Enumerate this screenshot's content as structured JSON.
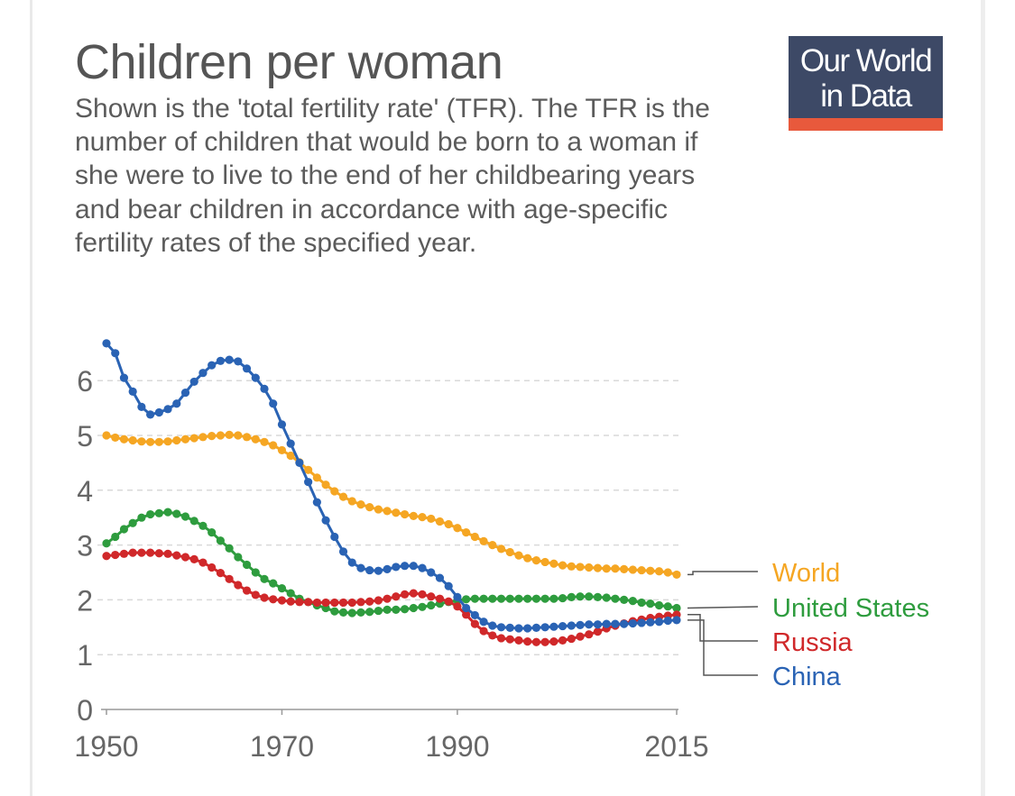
{
  "header": {
    "title": "Children per woman",
    "subtitle": "Shown is the 'total fertility rate' (TFR). The TFR is the number of children that would be born to a woman if she were to live to the end of her childbearing years and bear children in accordance with age-specific fertility rates of the specified year."
  },
  "logo": {
    "line1": "Our World",
    "line2": "in Data"
  },
  "colors": {
    "World": "#f5a623",
    "United States": "#2e9c3e",
    "Russia": "#d0282a",
    "China": "#2a63b4"
  },
  "chart_data": {
    "type": "line",
    "title": "Children per woman",
    "ylim": [
      0,
      6.6
    ],
    "yticks": [
      0,
      1,
      2,
      3,
      4,
      5,
      6
    ],
    "xticks": [
      1950,
      1970,
      1990,
      2015
    ],
    "grid": true,
    "legend": "right-end labels",
    "x": [
      1950,
      1951,
      1952,
      1953,
      1954,
      1955,
      1956,
      1957,
      1958,
      1959,
      1960,
      1961,
      1962,
      1963,
      1964,
      1965,
      1966,
      1967,
      1968,
      1969,
      1970,
      1971,
      1972,
      1973,
      1974,
      1975,
      1976,
      1977,
      1978,
      1979,
      1980,
      1981,
      1982,
      1983,
      1984,
      1985,
      1986,
      1987,
      1988,
      1989,
      1990,
      1991,
      1992,
      1993,
      1994,
      1995,
      1996,
      1997,
      1998,
      1999,
      2000,
      2001,
      2002,
      2003,
      2004,
      2005,
      2006,
      2007,
      2008,
      2009,
      2010,
      2011,
      2012,
      2013,
      2014,
      2015
    ],
    "series": [
      {
        "name": "World",
        "values": [
          5.0,
          4.96,
          4.93,
          4.91,
          4.89,
          4.88,
          4.88,
          4.89,
          4.91,
          4.93,
          4.95,
          4.97,
          4.99,
          5.0,
          5.01,
          5.0,
          4.97,
          4.93,
          4.88,
          4.82,
          4.73,
          4.63,
          4.51,
          4.37,
          4.23,
          4.1,
          3.98,
          3.88,
          3.8,
          3.74,
          3.69,
          3.65,
          3.62,
          3.59,
          3.56,
          3.53,
          3.51,
          3.48,
          3.43,
          3.38,
          3.31,
          3.23,
          3.15,
          3.07,
          3.0,
          2.93,
          2.87,
          2.81,
          2.76,
          2.72,
          2.69,
          2.66,
          2.63,
          2.61,
          2.6,
          2.59,
          2.58,
          2.57,
          2.57,
          2.56,
          2.55,
          2.54,
          2.53,
          2.52,
          2.5,
          2.46
        ]
      },
      {
        "name": "United States",
        "values": [
          3.03,
          3.15,
          3.29,
          3.4,
          3.5,
          3.56,
          3.58,
          3.6,
          3.57,
          3.52,
          3.44,
          3.35,
          3.23,
          3.08,
          2.94,
          2.78,
          2.64,
          2.5,
          2.38,
          2.3,
          2.21,
          2.12,
          2.02,
          1.96,
          1.9,
          1.85,
          1.79,
          1.77,
          1.76,
          1.77,
          1.78,
          1.8,
          1.82,
          1.82,
          1.83,
          1.85,
          1.87,
          1.9,
          1.93,
          1.96,
          1.99,
          2.01,
          2.02,
          2.02,
          2.02,
          2.02,
          2.02,
          2.02,
          2.02,
          2.02,
          2.02,
          2.02,
          2.03,
          2.05,
          2.06,
          2.06,
          2.05,
          2.04,
          2.02,
          2.0,
          1.98,
          1.95,
          1.93,
          1.9,
          1.88,
          1.85
        ]
      },
      {
        "name": "Russia",
        "values": [
          2.8,
          2.82,
          2.84,
          2.86,
          2.86,
          2.86,
          2.85,
          2.84,
          2.81,
          2.78,
          2.74,
          2.68,
          2.59,
          2.49,
          2.38,
          2.27,
          2.17,
          2.09,
          2.04,
          2.01,
          1.99,
          1.97,
          1.96,
          1.96,
          1.95,
          1.95,
          1.95,
          1.95,
          1.95,
          1.96,
          1.97,
          1.99,
          2.02,
          2.06,
          2.1,
          2.12,
          2.1,
          2.06,
          2.02,
          1.97,
          1.88,
          1.73,
          1.56,
          1.43,
          1.35,
          1.3,
          1.28,
          1.26,
          1.24,
          1.23,
          1.23,
          1.24,
          1.26,
          1.29,
          1.33,
          1.37,
          1.42,
          1.48,
          1.53,
          1.57,
          1.61,
          1.64,
          1.67,
          1.69,
          1.71,
          1.73
        ]
      },
      {
        "name": "China",
        "values": [
          6.68,
          6.5,
          6.05,
          5.8,
          5.52,
          5.38,
          5.42,
          5.48,
          5.58,
          5.78,
          5.98,
          6.14,
          6.28,
          6.36,
          6.38,
          6.35,
          6.22,
          6.05,
          5.85,
          5.58,
          5.2,
          4.85,
          4.5,
          4.15,
          3.78,
          3.45,
          3.15,
          2.88,
          2.68,
          2.58,
          2.54,
          2.53,
          2.56,
          2.6,
          2.62,
          2.62,
          2.58,
          2.5,
          2.4,
          2.25,
          2.05,
          1.85,
          1.72,
          1.6,
          1.53,
          1.5,
          1.49,
          1.48,
          1.48,
          1.49,
          1.5,
          1.51,
          1.52,
          1.53,
          1.54,
          1.55,
          1.55,
          1.56,
          1.56,
          1.56,
          1.57,
          1.58,
          1.59,
          1.6,
          1.62,
          1.63
        ]
      }
    ],
    "end_labels": [
      "World",
      "United States",
      "Russia",
      "China"
    ]
  }
}
